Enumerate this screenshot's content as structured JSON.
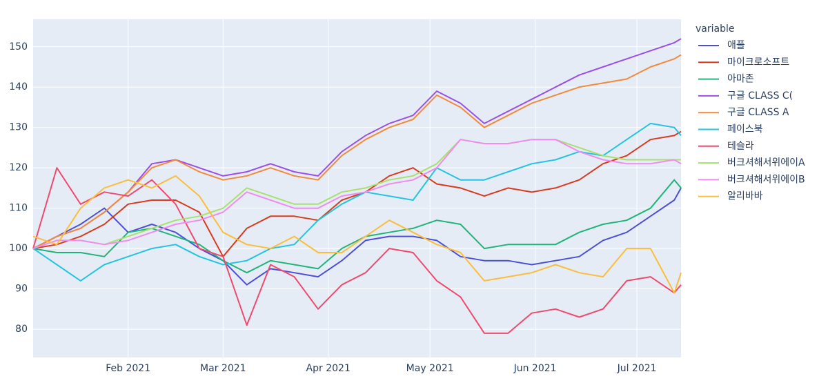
{
  "chart_data": {
    "type": "line",
    "legend_title": "variable",
    "x": [
      "2021-01-04",
      "2021-01-11",
      "2021-01-18",
      "2021-01-25",
      "2021-02-01",
      "2021-02-08",
      "2021-02-15",
      "2021-02-22",
      "2021-03-01",
      "2021-03-08",
      "2021-03-15",
      "2021-03-22",
      "2021-03-29",
      "2021-04-05",
      "2021-04-12",
      "2021-04-19",
      "2021-04-26",
      "2021-05-03",
      "2021-05-10",
      "2021-05-17",
      "2021-05-24",
      "2021-05-31",
      "2021-06-07",
      "2021-06-14",
      "2021-06-21",
      "2021-06-28",
      "2021-07-05",
      "2021-07-12",
      "2021-07-14"
    ],
    "xlim": [
      "2021-01-04",
      "2021-07-14"
    ],
    "xticks": [
      {
        "value": "2021-02-01",
        "label": "Feb 2021"
      },
      {
        "value": "2021-03-01",
        "label": "Mar 2021"
      },
      {
        "value": "2021-04-01",
        "label": "Apr 2021"
      },
      {
        "value": "2021-05-01",
        "label": "May 2021"
      },
      {
        "value": "2021-06-01",
        "label": "Jun 2021"
      },
      {
        "value": "2021-07-01",
        "label": "Jul 2021"
      }
    ],
    "ylim": [
      73,
      156.8
    ],
    "yticks": [
      80,
      90,
      100,
      110,
      120,
      130,
      140,
      150
    ],
    "grid": true,
    "legend": "right",
    "series": [
      {
        "name": "애플",
        "color": "#4b4fd6",
        "values": [
          100,
          103,
          106,
          110,
          104,
          106,
          104,
          100,
          97,
          91,
          95,
          94,
          93,
          97,
          102,
          103,
          103,
          102,
          98,
          97,
          97,
          96,
          97,
          98,
          102,
          104,
          108,
          112,
          115
        ]
      },
      {
        "name": "마이크로소프트",
        "color": "#d93a1c",
        "values": [
          100,
          101,
          103,
          106,
          111,
          112,
          112,
          109,
          98,
          105,
          108,
          108,
          107,
          112,
          114,
          118,
          120,
          116,
          115,
          113,
          115,
          114,
          115,
          117,
          121,
          123,
          127,
          128,
          129
        ]
      },
      {
        "name": "아마존",
        "color": "#1fb57a",
        "values": [
          100,
          99,
          99,
          98,
          104,
          105,
          103,
          101,
          97,
          94,
          97,
          96,
          95,
          100,
          103,
          104,
          105,
          107,
          106,
          100,
          101,
          101,
          101,
          104,
          106,
          107,
          110,
          117,
          115
        ]
      },
      {
        "name": "구글 CLASS C(",
        "color": "#9b4ee8",
        "values": [
          100,
          103,
          105,
          109,
          114,
          121,
          122,
          120,
          118,
          119,
          121,
          119,
          118,
          124,
          128,
          131,
          133,
          139,
          136,
          131,
          134,
          137,
          140,
          143,
          145,
          147,
          149,
          151,
          152
        ]
      },
      {
        "name": "구글 CLASS A",
        "color": "#f38a3a",
        "values": [
          100,
          103,
          105,
          109,
          114,
          120,
          122,
          119,
          117,
          118,
          120,
          118,
          117,
          123,
          127,
          130,
          132,
          138,
          135,
          130,
          133,
          136,
          138,
          140,
          141,
          142,
          145,
          147,
          148
        ]
      },
      {
        "name": "페이스북",
        "color": "#22c4e0",
        "values": [
          100,
          96,
          92,
          96,
          98,
          100,
          101,
          98,
          96,
          97,
          100,
          101,
          107,
          111,
          114,
          113,
          112,
          120,
          117,
          117,
          119,
          121,
          122,
          124,
          123,
          127,
          131,
          130,
          128
        ]
      },
      {
        "name": "테슬라",
        "color": "#ef4a6e",
        "values": [
          100,
          120,
          111,
          114,
          113,
          117,
          111,
          100,
          98,
          81,
          96,
          93,
          85,
          91,
          94,
          100,
          99,
          92,
          88,
          79,
          79,
          84,
          85,
          83,
          85,
          92,
          93,
          89,
          91
        ]
      },
      {
        "name": "버크셔해서위에이A",
        "color": "#a8e070",
        "values": [
          100,
          102,
          102,
          101,
          103,
          105,
          107,
          108,
          110,
          115,
          113,
          111,
          111,
          114,
          115,
          117,
          118,
          121,
          127,
          126,
          126,
          127,
          127,
          125,
          123,
          122,
          122,
          122,
          122
        ]
      },
      {
        "name": "버크셔해서위에이B",
        "color": "#f08cf0",
        "values": [
          100,
          102,
          102,
          101,
          102,
          104,
          106,
          107,
          109,
          114,
          112,
          110,
          110,
          113,
          114,
          116,
          117,
          120,
          127,
          126,
          126,
          127,
          127,
          124,
          122,
          121,
          121,
          122,
          121
        ]
      },
      {
        "name": "알리바바",
        "color": "#fbbd3a",
        "values": [
          103,
          101,
          110,
          115,
          117,
          115,
          118,
          113,
          104,
          101,
          100,
          103,
          99,
          99,
          103,
          107,
          104,
          101,
          99,
          92,
          93,
          94,
          96,
          94,
          93,
          100,
          100,
          89,
          94
        ]
      }
    ]
  }
}
